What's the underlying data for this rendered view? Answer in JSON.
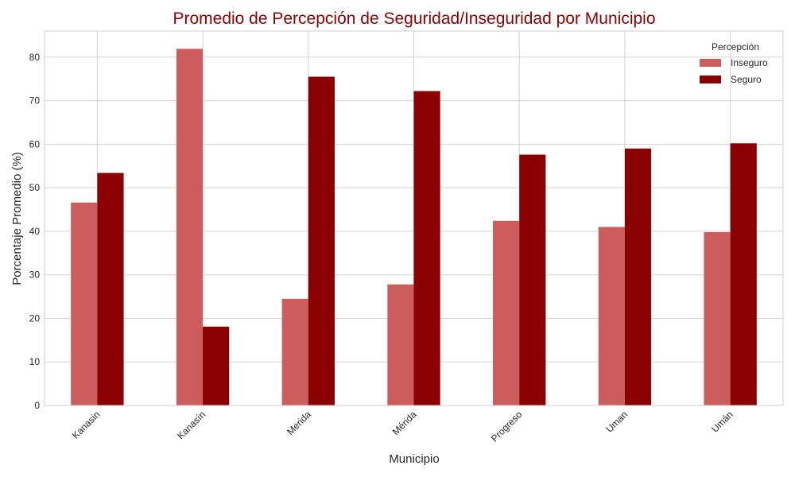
{
  "chart_data": {
    "type": "bar",
    "title": "Promedio de Percepción de Seguridad/Inseguridad por Municipio",
    "xlabel": "Municipio",
    "ylabel": "Porcentaje Promedio (%)",
    "categories": [
      "Kanasin",
      "Kanasín",
      "Merida",
      "Mérida",
      "Progreso",
      "Uman",
      "Umán"
    ],
    "series": [
      {
        "name": "Inseguro",
        "color": "#cd5c5c",
        "values": [
          46.6,
          81.9,
          24.5,
          27.8,
          42.4,
          41.0,
          39.8
        ]
      },
      {
        "name": "Seguro",
        "color": "#8b0000",
        "values": [
          53.4,
          18.1,
          75.5,
          72.2,
          57.6,
          59.0,
          60.2
        ]
      }
    ],
    "ylim": [
      0,
      86
    ],
    "yticks": [
      0,
      10,
      20,
      30,
      40,
      50,
      60,
      70,
      80
    ],
    "grid": true,
    "legend": {
      "title": "Percepción",
      "placement": "top-right"
    },
    "title_color": "#8b0000"
  }
}
